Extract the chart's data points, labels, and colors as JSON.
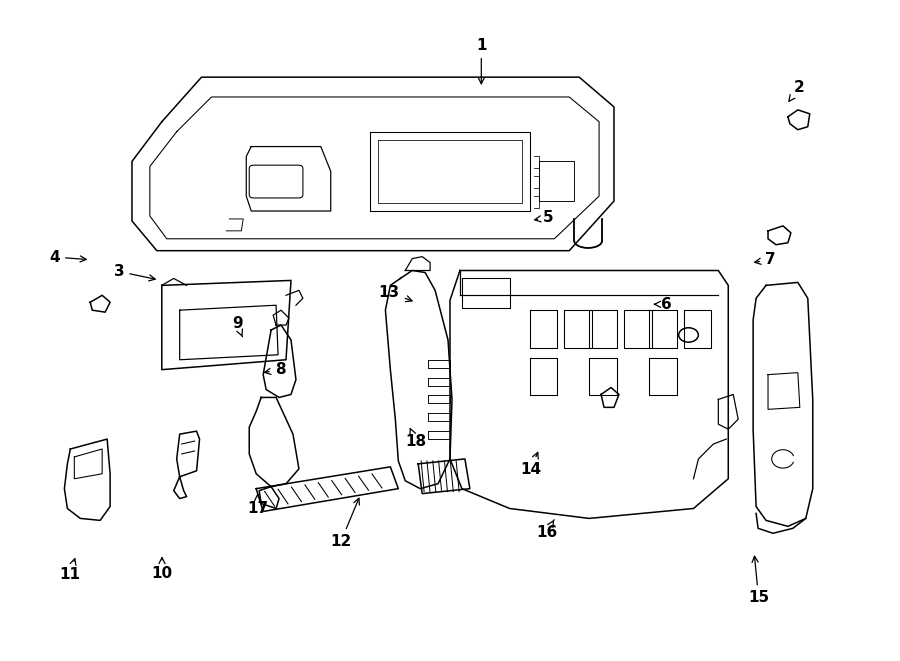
{
  "background_color": "#ffffff",
  "line_color": "#000000",
  "fig_width": 9.0,
  "fig_height": 6.61,
  "dpi": 100,
  "label_positions": {
    "1": [
      0.535,
      0.935,
      0.535,
      0.87
    ],
    "2": [
      0.89,
      0.87,
      0.878,
      0.848
    ],
    "3": [
      0.13,
      0.59,
      0.175,
      0.577
    ],
    "4": [
      0.058,
      0.612,
      0.098,
      0.608
    ],
    "5": [
      0.61,
      0.672,
      0.59,
      0.668
    ],
    "6": [
      0.742,
      0.54,
      0.724,
      0.54
    ],
    "7": [
      0.858,
      0.608,
      0.836,
      0.603
    ],
    "8": [
      0.31,
      0.44,
      0.288,
      0.435
    ],
    "9": [
      0.262,
      0.51,
      0.268,
      0.49
    ],
    "10": [
      0.178,
      0.13,
      0.178,
      0.16
    ],
    "11": [
      0.075,
      0.128,
      0.082,
      0.158
    ],
    "12": [
      0.378,
      0.178,
      0.4,
      0.25
    ],
    "13": [
      0.432,
      0.558,
      0.462,
      0.543
    ],
    "14": [
      0.59,
      0.288,
      0.6,
      0.32
    ],
    "15": [
      0.845,
      0.092,
      0.84,
      0.162
    ],
    "16": [
      0.608,
      0.192,
      0.618,
      0.215
    ],
    "17": [
      0.285,
      0.228,
      0.285,
      0.252
    ],
    "18": [
      0.462,
      0.33,
      0.455,
      0.352
    ]
  }
}
